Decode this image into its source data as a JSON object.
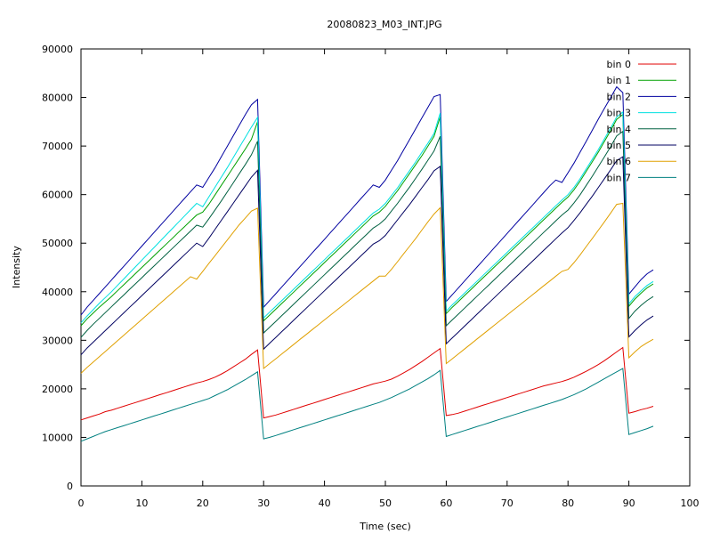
{
  "chart_data": {
    "type": "line",
    "title": "20080823_M03_INT.JPG",
    "xlabel": "Time (sec)",
    "ylabel": "Intensity",
    "xlim": [
      0,
      100
    ],
    "ylim": [
      0,
      90000
    ],
    "x_ticks": [
      "0",
      "10",
      "20",
      "30",
      "40",
      "50",
      "60",
      "70",
      "80",
      "90",
      "100"
    ],
    "y_ticks": [
      "0",
      "10000",
      "20000",
      "30000",
      "40000",
      "50000",
      "60000",
      "70000",
      "80000",
      "90000"
    ],
    "grid": false,
    "legend_position": "top-right",
    "x": [
      0,
      1,
      2,
      3,
      4,
      5,
      6,
      7,
      8,
      9,
      10,
      11,
      12,
      13,
      14,
      15,
      16,
      17,
      18,
      19,
      20,
      21,
      22,
      23,
      24,
      25,
      26,
      27,
      28,
      29,
      30,
      31,
      32,
      33,
      34,
      35,
      36,
      37,
      38,
      39,
      40,
      41,
      42,
      43,
      44,
      45,
      46,
      47,
      48,
      49,
      50,
      51,
      52,
      53,
      54,
      55,
      56,
      57,
      58,
      59,
      60,
      61,
      62,
      63,
      64,
      65,
      66,
      67,
      68,
      69,
      70,
      71,
      72,
      73,
      74,
      75,
      76,
      77,
      78,
      79,
      80,
      81,
      82,
      83,
      84,
      85,
      86,
      87,
      88,
      89,
      90,
      91,
      92,
      93,
      94
    ],
    "series": [
      {
        "name": "bin 0",
        "color": "#e00000",
        "values": [
          13600,
          14000,
          14400,
          14800,
          15300,
          15600,
          16000,
          16400,
          16800,
          17200,
          17600,
          18000,
          18400,
          18800,
          19200,
          19600,
          20000,
          20400,
          20800,
          21200,
          21500,
          21900,
          22400,
          23000,
          23700,
          24500,
          25300,
          26100,
          27100,
          28000,
          14000,
          14300,
          14600,
          15000,
          15400,
          15800,
          16200,
          16600,
          17000,
          17400,
          17800,
          18200,
          18600,
          19000,
          19400,
          19800,
          20200,
          20600,
          21000,
          21300,
          21600,
          22000,
          22600,
          23300,
          24000,
          24800,
          25600,
          26500,
          27400,
          28300,
          14500,
          14700,
          15000,
          15400,
          15800,
          16200,
          16600,
          17000,
          17400,
          17800,
          18200,
          18600,
          19000,
          19400,
          19800,
          20200,
          20600,
          20900,
          21200,
          21500,
          21900,
          22400,
          23000,
          23600,
          24300,
          25000,
          25800,
          26700,
          27600,
          28500,
          15000,
          15300,
          15700,
          16000,
          16400
        ]
      },
      {
        "name": "bin 1",
        "color": "#00a000",
        "values": [
          33000,
          34400,
          35600,
          36800,
          37900,
          39000,
          40200,
          41400,
          42600,
          43800,
          45000,
          46200,
          47400,
          48600,
          49800,
          51000,
          52200,
          53400,
          54600,
          55800,
          56400,
          58000,
          59900,
          61800,
          63700,
          65600,
          67500,
          69400,
          71400,
          75000,
          34000,
          35200,
          36400,
          37600,
          38800,
          40000,
          41200,
          42400,
          43600,
          44800,
          46000,
          47200,
          48400,
          49600,
          50800,
          52000,
          53200,
          54400,
          55600,
          56400,
          57600,
          59200,
          60800,
          62600,
          64400,
          66200,
          68000,
          70000,
          72000,
          76000,
          35500,
          36800,
          38000,
          39200,
          40400,
          41600,
          42800,
          44000,
          45200,
          46400,
          47600,
          48800,
          50000,
          51200,
          52400,
          53600,
          54800,
          56000,
          57200,
          58400,
          59500,
          61000,
          62800,
          64800,
          66800,
          68800,
          71000,
          73200,
          75500,
          76500,
          37000,
          38500,
          39700,
          40800,
          41600
        ]
      },
      {
        "name": "bin 2",
        "color": "#0000a0",
        "values": [
          35200,
          36800,
          38200,
          39600,
          41000,
          42400,
          43800,
          45200,
          46600,
          48000,
          49400,
          50800,
          52200,
          53600,
          55000,
          56400,
          57800,
          59200,
          60600,
          62000,
          61500,
          63500,
          65500,
          67700,
          69900,
          72100,
          74300,
          76500,
          78500,
          79600,
          36800,
          38200,
          39600,
          41000,
          42400,
          43800,
          45200,
          46600,
          48000,
          49400,
          50800,
          52200,
          53600,
          55000,
          56400,
          57800,
          59200,
          60600,
          62000,
          61500,
          63000,
          65000,
          67000,
          69200,
          71400,
          73600,
          75800,
          78000,
          80200,
          80600,
          38000,
          39400,
          40800,
          42200,
          43600,
          45000,
          46400,
          47800,
          49200,
          50600,
          52000,
          53400,
          54800,
          56200,
          57600,
          59000,
          60400,
          61800,
          63000,
          62500,
          64500,
          66500,
          68800,
          71000,
          73300,
          75600,
          77800,
          80000,
          82200,
          81000,
          39500,
          41000,
          42500,
          43700,
          44500
        ]
      },
      {
        "name": "bin 3",
        "color": "#00e0e0",
        "values": [
          33600,
          35000,
          36300,
          37600,
          38800,
          40000,
          41300,
          42600,
          43900,
          45200,
          46500,
          47800,
          49100,
          50400,
          51700,
          53000,
          54300,
          55600,
          56900,
          58200,
          57500,
          59500,
          61500,
          63500,
          65500,
          67600,
          69700,
          71800,
          73900,
          75900,
          34600,
          35800,
          37000,
          38200,
          39400,
          40600,
          41800,
          43000,
          44200,
          45400,
          46600,
          47800,
          49000,
          50200,
          51400,
          52600,
          53800,
          55000,
          56200,
          57000,
          58200,
          59800,
          61400,
          63200,
          65000,
          66800,
          68700,
          70600,
          72600,
          76800,
          36000,
          37300,
          38500,
          39700,
          40900,
          42100,
          43300,
          44500,
          45700,
          46900,
          48100,
          49300,
          50500,
          51700,
          52900,
          54100,
          55300,
          56500,
          57700,
          58900,
          60000,
          61500,
          63300,
          65300,
          67300,
          69300,
          71500,
          73700,
          76000,
          77000,
          37500,
          39000,
          40200,
          41300,
          42100
        ]
      },
      {
        "name": "bin 4",
        "color": "#006040",
        "values": [
          30600,
          32000,
          33300,
          34500,
          35700,
          36900,
          38100,
          39300,
          40500,
          41700,
          42900,
          44100,
          45300,
          46500,
          47700,
          48900,
          50100,
          51300,
          52500,
          53700,
          53300,
          55000,
          56800,
          58600,
          60500,
          62400,
          64300,
          66200,
          68200,
          71000,
          31500,
          32700,
          33900,
          35100,
          36300,
          37500,
          38700,
          39900,
          41100,
          42300,
          43500,
          44700,
          45900,
          47100,
          48300,
          49500,
          50700,
          51900,
          53100,
          53900,
          55000,
          56600,
          58200,
          59900,
          61600,
          63400,
          65200,
          67100,
          69000,
          72000,
          33000,
          34200,
          35400,
          36600,
          37800,
          39000,
          40200,
          41400,
          42600,
          43800,
          45000,
          46200,
          47400,
          48600,
          49800,
          51000,
          52200,
          53400,
          54600,
          55800,
          56800,
          58300,
          60000,
          61900,
          63800,
          65800,
          67800,
          69900,
          72100,
          73000,
          34500,
          36000,
          37200,
          38200,
          39000
        ]
      },
      {
        "name": "bin 5",
        "color": "#000060",
        "values": [
          27000,
          28400,
          29600,
          30800,
          32000,
          33200,
          34400,
          35600,
          36800,
          38000,
          39200,
          40400,
          41600,
          42800,
          44000,
          45200,
          46400,
          47600,
          48800,
          50000,
          49300,
          51000,
          52800,
          54600,
          56400,
          58200,
          60000,
          61800,
          63600,
          65000,
          28200,
          29400,
          30600,
          31800,
          33000,
          34200,
          35400,
          36600,
          37800,
          39000,
          40200,
          41400,
          42600,
          43800,
          45000,
          46200,
          47400,
          48600,
          49800,
          50500,
          51600,
          53200,
          54800,
          56400,
          58000,
          59700,
          61400,
          63100,
          64900,
          65800,
          29300,
          30500,
          31700,
          32900,
          34100,
          35300,
          36500,
          37700,
          38900,
          40100,
          41300,
          42500,
          43700,
          44900,
          46100,
          47300,
          48500,
          49700,
          50900,
          52100,
          53200,
          54700,
          56300,
          58000,
          59700,
          61500,
          63300,
          65100,
          67000,
          67800,
          30700,
          32000,
          33200,
          34200,
          35000
        ]
      },
      {
        "name": "bin 6",
        "color": "#e0a000",
        "values": [
          23200,
          24400,
          25500,
          26600,
          27700,
          28800,
          29900,
          31000,
          32100,
          33200,
          34300,
          35400,
          36500,
          37600,
          38700,
          39800,
          40900,
          42000,
          43100,
          42600,
          44200,
          45800,
          47400,
          49000,
          50600,
          52200,
          53800,
          55200,
          56600,
          57200,
          24200,
          25200,
          26200,
          27200,
          28200,
          29200,
          30200,
          31200,
          32200,
          33200,
          34200,
          35200,
          36200,
          37200,
          38200,
          39200,
          40200,
          41200,
          42200,
          43200,
          43200,
          44600,
          46200,
          47800,
          49400,
          51000,
          52700,
          54400,
          56000,
          57300,
          25200,
          26200,
          27200,
          28200,
          29200,
          30200,
          31200,
          32200,
          33200,
          34200,
          35200,
          36200,
          37200,
          38200,
          39200,
          40200,
          41200,
          42200,
          43200,
          44200,
          44600,
          46000,
          47600,
          49300,
          51000,
          52700,
          54400,
          56200,
          58000,
          58200,
          26400,
          27600,
          28700,
          29500,
          30200
        ]
      },
      {
        "name": "bin 7",
        "color": "#008080",
        "values": [
          9200,
          9700,
          10200,
          10700,
          11200,
          11600,
          12000,
          12400,
          12800,
          13200,
          13600,
          14000,
          14400,
          14800,
          15200,
          15600,
          16000,
          16400,
          16800,
          17200,
          17600,
          18000,
          18600,
          19200,
          19800,
          20500,
          21200,
          21900,
          22700,
          23500,
          9700,
          10000,
          10400,
          10800,
          11200,
          11600,
          12000,
          12400,
          12800,
          13200,
          13600,
          14000,
          14400,
          14800,
          15200,
          15600,
          16000,
          16400,
          16800,
          17200,
          17700,
          18200,
          18800,
          19400,
          20000,
          20700,
          21400,
          22100,
          22900,
          23800,
          10200,
          10600,
          11000,
          11400,
          11800,
          12200,
          12600,
          13000,
          13400,
          13800,
          14200,
          14600,
          15000,
          15400,
          15800,
          16200,
          16600,
          17000,
          17400,
          17800,
          18300,
          18800,
          19400,
          20000,
          20700,
          21400,
          22100,
          22800,
          23500,
          24200,
          10600,
          11000,
          11400,
          11800,
          12300
        ]
      }
    ]
  }
}
